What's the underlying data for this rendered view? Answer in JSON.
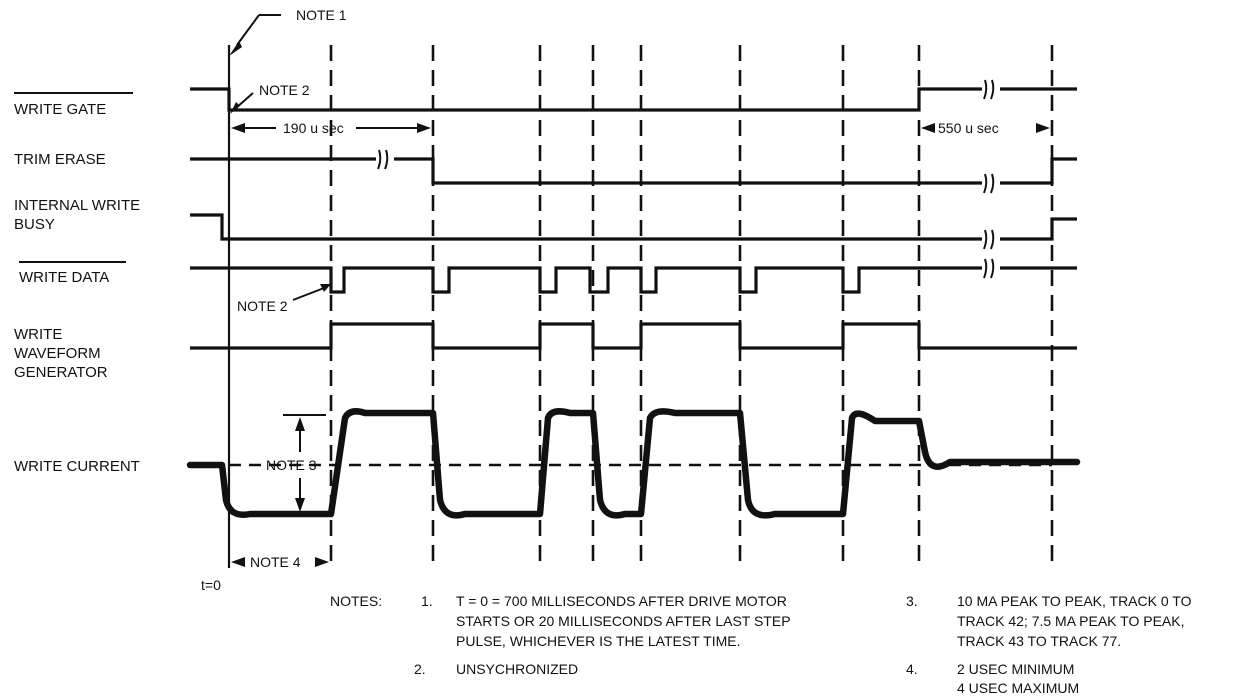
{
  "signals": [
    {
      "id": "write_gate",
      "label_lines": [
        "WRITE GATE"
      ],
      "overbar": true
    },
    {
      "id": "trim_erase",
      "label_lines": [
        "TRIM ERASE"
      ],
      "overbar": false
    },
    {
      "id": "internal_write_busy",
      "label_lines": [
        "INTERNAL  WRITE",
        "BUSY"
      ],
      "overbar": false
    },
    {
      "id": "write_data",
      "label_lines": [
        "WRITE DATA"
      ],
      "overbar": true
    },
    {
      "id": "write_waveform_generator",
      "label_lines": [
        "WRITE",
        "WAVEFORM",
        "GENERATOR"
      ],
      "overbar": false
    },
    {
      "id": "write_current",
      "label_lines": [
        "WRITE CURRENT"
      ],
      "overbar": false
    }
  ],
  "annotations": {
    "note1": "NOTE 1",
    "note2_top": "NOTE 2",
    "note2_data": "NOTE 2",
    "note3": "NOTE 3",
    "note4": "NOTE 4",
    "t_190": "190 u sec",
    "t_550": "550 u sec",
    "t0": "t=0"
  },
  "notes": {
    "heading": "NOTES:",
    "items": [
      {
        "num": "1.",
        "lines": [
          "T = 0 = 700 MILLISECONDS AFTER DRIVE MOTOR",
          "STARTS OR 20 MILLISECONDS AFTER LAST STEP",
          "PULSE, WHICHEVER IS THE LATEST TIME."
        ]
      },
      {
        "num": "2.",
        "lines": [
          "UNSYCHRONIZED"
        ]
      },
      {
        "num": "3.",
        "lines": [
          "10 MA PEAK TO PEAK, TRACK 0  TO",
          "TRACK 42; 7.5 MA PEAK TO PEAK,",
          "TRACK 43 TO TRACK 77."
        ]
      },
      {
        "num": "4.",
        "lines": [
          "2 USEC MINIMUM",
          "4 USEC MAXIMUM"
        ]
      }
    ]
  }
}
